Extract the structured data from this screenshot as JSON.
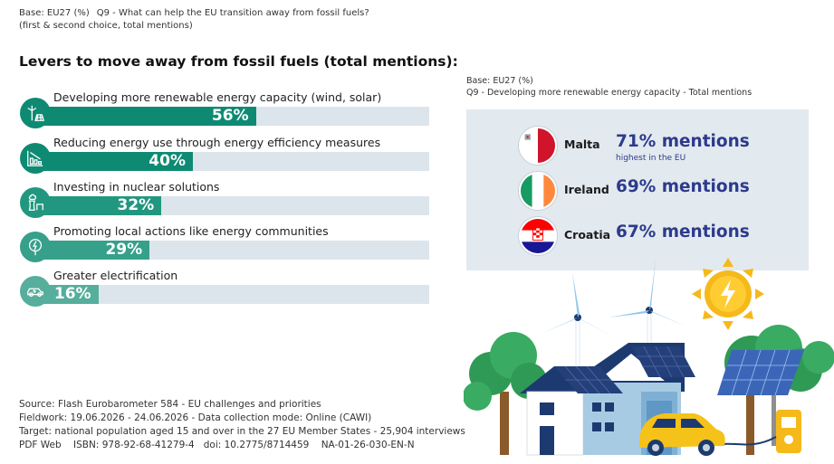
{
  "header": {
    "base": "Base: EU27 (%)",
    "question": "Q9 - What can help the EU transition away from fossil fuels?",
    "subnote": "(first & second choice, total mentions)"
  },
  "title": "Levers to move away from fossil fuels (total mentions):",
  "chart_data": [
    {
      "type": "bar",
      "title": "Levers to move away from fossil fuels (total mentions):",
      "categories": [
        "Developing more renewable energy capacity (wind, solar)",
        "Reducing energy use through energy efficiency measures",
        "Investing in nuclear solutions",
        "Promoting local actions like energy communities",
        "Greater electrification"
      ],
      "values": [
        56,
        40,
        32,
        29,
        16
      ],
      "value_labels": [
        "56%",
        "40%",
        "32%",
        "29%",
        "16%"
      ],
      "icons": [
        "wind-solar-icon",
        "energy-efficiency-icon",
        "nuclear-plant-icon",
        "energy-community-icon",
        "electric-car-icon"
      ],
      "colors": [
        "#0e8a73",
        "#0e8a73",
        "#22977f",
        "#36a08b",
        "#56ae9c"
      ],
      "track_color": "#dde5ec",
      "xlim": [
        0,
        100
      ],
      "grid": false
    },
    {
      "type": "table",
      "base": "Base: EU27 (%)",
      "title": "Q9 - Developing more renewable energy capacity - Total mentions",
      "rows": [
        {
          "country": "Malta",
          "value": 71,
          "label": "71% mentions",
          "note": "highest in the EU",
          "flag": "malta-flag"
        },
        {
          "country": "Ireland",
          "value": 69,
          "label": "69% mentions",
          "note": "",
          "flag": "ireland-flag"
        },
        {
          "country": "Croatia",
          "value": 67,
          "label": "67% mentions",
          "note": "",
          "flag": "croatia-flag"
        }
      ]
    }
  ],
  "footer": {
    "source": "Source: Flash Eurobarometer 584 - EU challenges and priorities",
    "fieldwork": "Fieldwork: 19.06.2026 - 24.06.2026 - Data collection mode: Online (CAWI)",
    "target": "Target: national population aged 15 and over in the 27 EU Member States - 25,904 interviews",
    "pub": "PDF Web    ISBN: 978-92-68-41279-4   doi: 10.2775/8714459    NA-01-26-030-EN-N"
  }
}
